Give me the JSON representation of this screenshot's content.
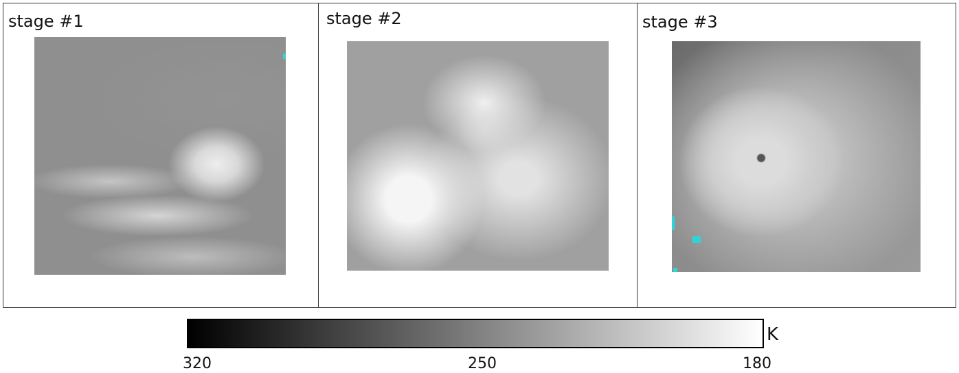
{
  "panels": [
    {
      "label": "stage #1"
    },
    {
      "label": "stage #2"
    },
    {
      "label": "stage #3"
    }
  ],
  "colorbar": {
    "unit": "K",
    "ticks": [
      "320",
      "250",
      "180"
    ],
    "range": [
      320,
      180
    ],
    "colors": [
      "#000000",
      "#ffffff"
    ]
  },
  "accent_colors": {
    "cyan_pixels": "#2fd3d8"
  }
}
